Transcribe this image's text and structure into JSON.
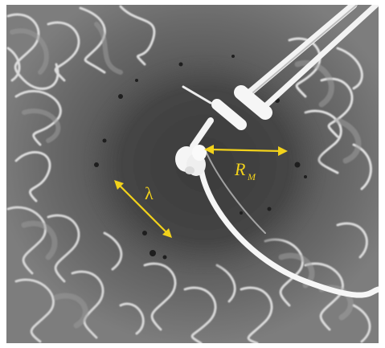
{
  "labels": {
    "lambda": "λ",
    "radius_main": "R",
    "radius_sub": "M"
  },
  "colors": {
    "annotation": "#f2d21b",
    "fluid_dark": "#3a3a3a",
    "fluid_mid": "#6e6e6e",
    "fluid_light": "#d9d9d9",
    "probe": "#f4f4f4",
    "border": "#ffffff"
  }
}
